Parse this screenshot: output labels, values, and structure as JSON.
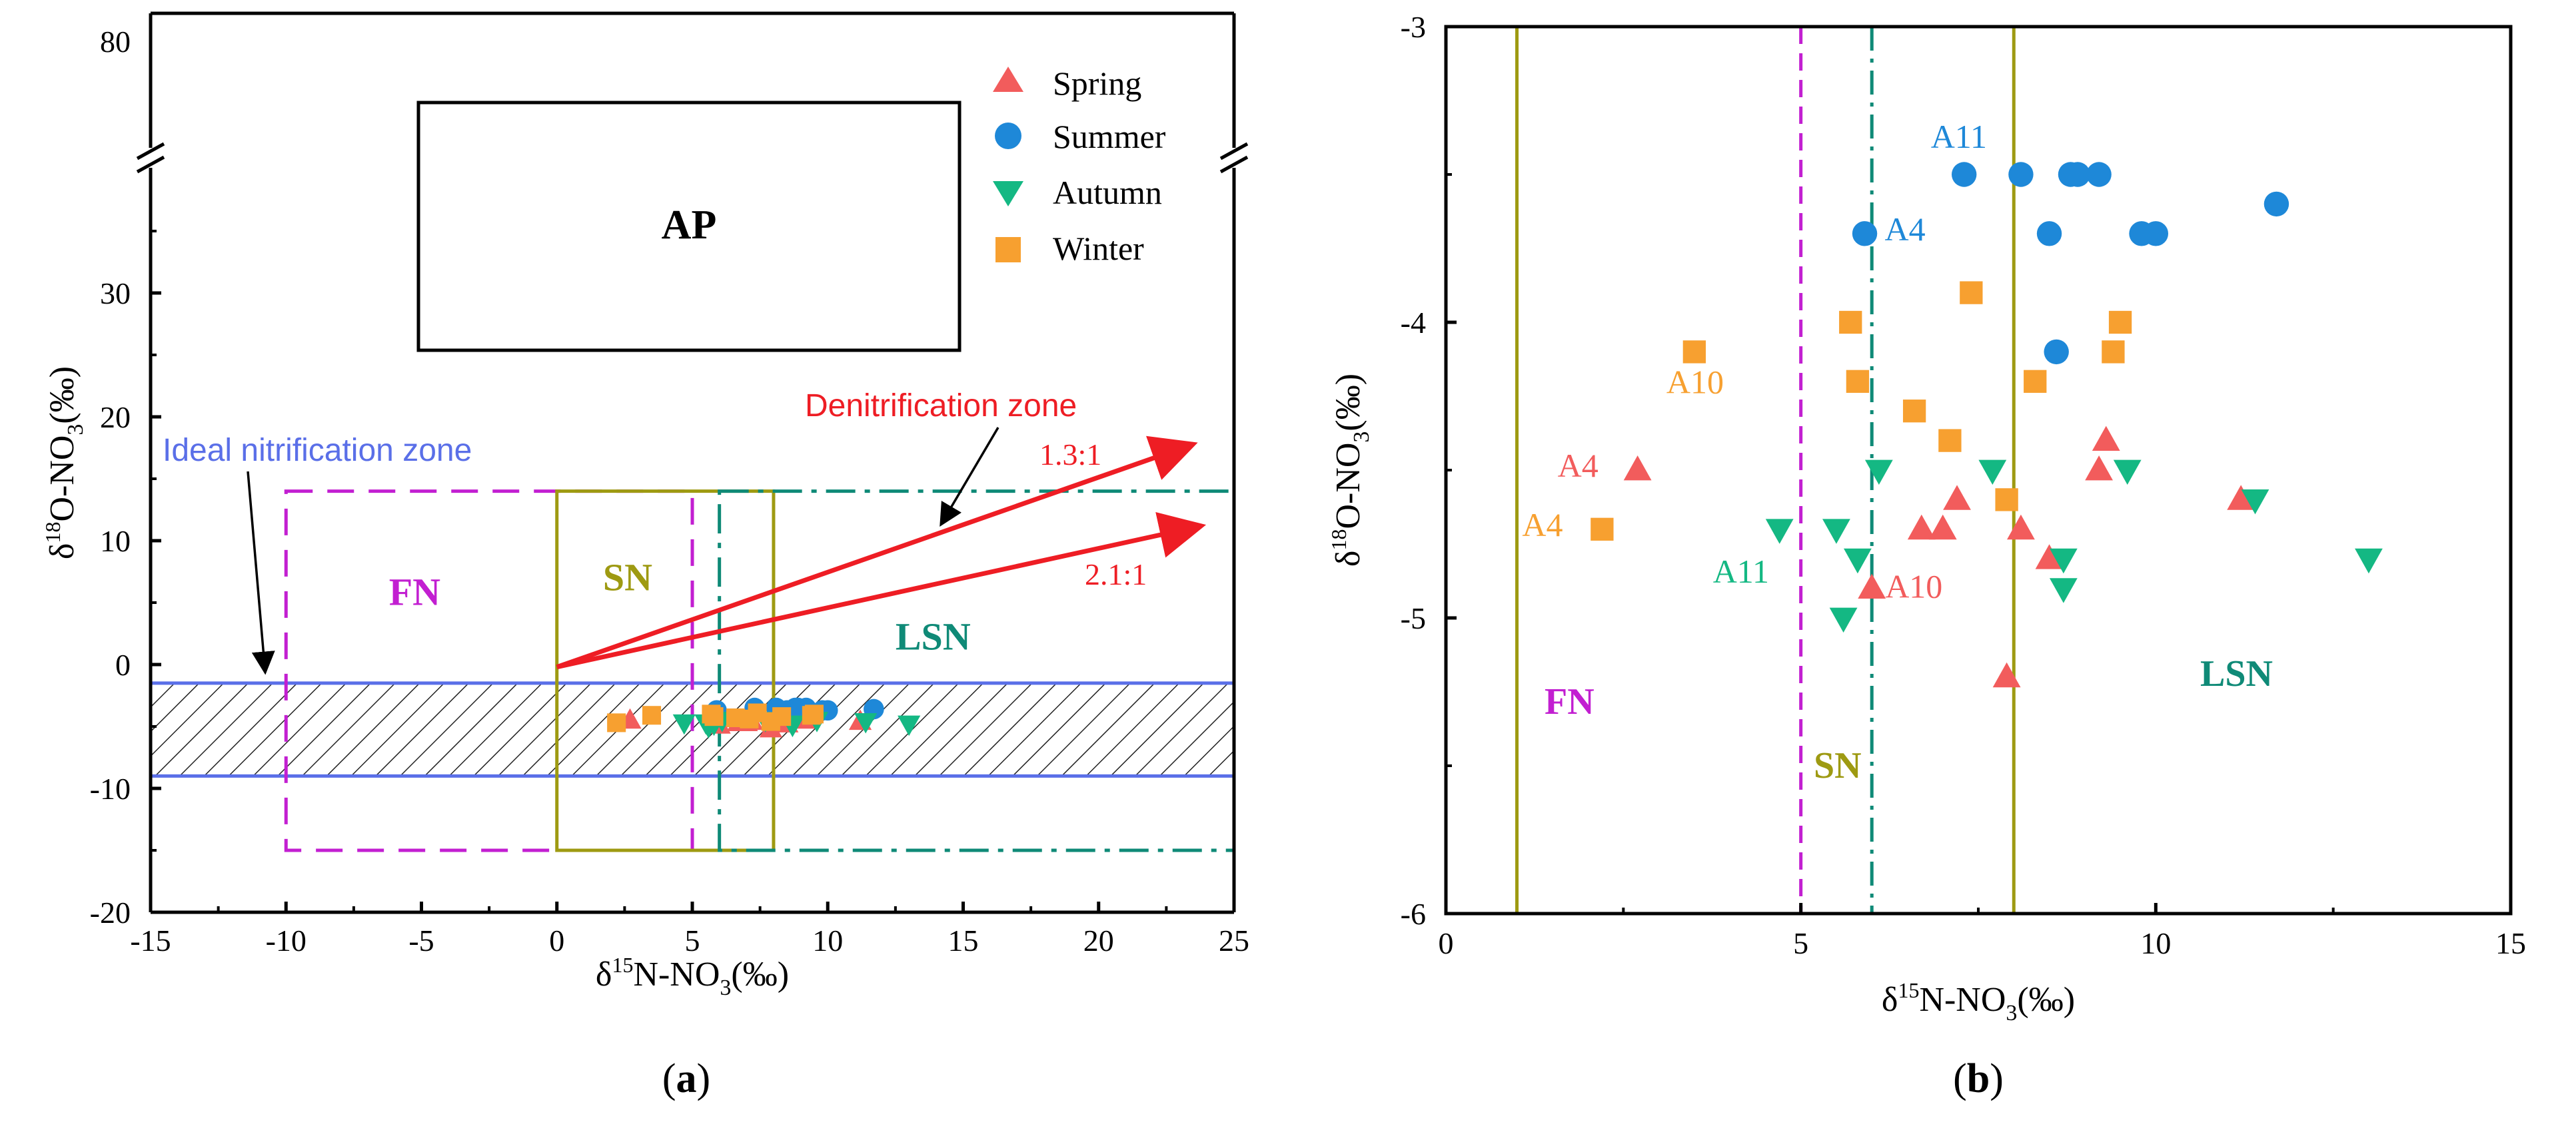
{
  "colors": {
    "spring": "#f25c5c",
    "summer": "#1e88d8",
    "autumn": "#14b883",
    "winter": "#f7a030",
    "fn": "#c21fd1",
    "sn": "#9e9a12",
    "lsn": "#0f8a77",
    "nitrification": "#5a6fe8",
    "denitrification": "#ee1d24"
  },
  "legend": {
    "spring": "Spring",
    "summer": "Summer",
    "autumn": "Autumn",
    "winter": "Winter"
  },
  "chart_data": [
    {
      "type": "scatter",
      "panel_label": "(a)",
      "xlabel": "δ15N-NO3(‰)",
      "ylabel": "δ18O-NO3(‰)",
      "xlim": [
        -15,
        25
      ],
      "ylim": [
        -20,
        37
      ],
      "ylim_break": {
        "below": 37,
        "above_label": 80
      },
      "xticks": [
        -15,
        -10,
        -5,
        0,
        5,
        10,
        15,
        20,
        25
      ],
      "yticks": [
        -20,
        -10,
        0,
        10,
        20,
        30
      ],
      "extra_tick_label": "80",
      "zones": {
        "ap_label": "AP",
        "fn_label": "FN",
        "sn_label": "SN",
        "lsn_label": "LSN",
        "fn_box": {
          "x": [
            -10,
            5
          ],
          "y": [
            -15,
            14
          ]
        },
        "sn_box": {
          "x": [
            0,
            8
          ],
          "y": [
            -15,
            14
          ]
        },
        "lsn_box": {
          "x": [
            6,
            25
          ],
          "y": [
            -15,
            14
          ]
        },
        "nitrification_band": {
          "x": [
            -15,
            25
          ],
          "y": [
            -9,
            -1.5
          ]
        },
        "nitrification_label": "Ideal nitrification zone",
        "denitrification_label": "Denitrification zone",
        "ratio_1": "1.3:1",
        "ratio_2": "2.1:1",
        "arrow_1": {
          "from": [
            0,
            -0.2
          ],
          "to": [
            23.5,
            17.8
          ]
        },
        "arrow_2": {
          "from": [
            0,
            -0.2
          ],
          "to": [
            23.8,
            11.2
          ]
        }
      },
      "series": [
        {
          "name": "Spring",
          "x": [
            2.7,
            6.7,
            7.0,
            7.2,
            7.9,
            8.1,
            8.5,
            9.2,
            9.3,
            11.2,
            6.0
          ],
          "y": [
            -4.5,
            -4.7,
            -4.7,
            -4.6,
            -5.2,
            -4.7,
            -4.8,
            -4.5,
            -4.4,
            -4.6,
            -4.9
          ]
        },
        {
          "name": "Summer",
          "x": [
            5.9,
            7.3,
            8.1,
            8.8,
            8.9,
            9.2,
            8.5,
            9.8,
            10.0,
            11.7,
            8.6
          ],
          "y": [
            -3.7,
            -3.5,
            -3.5,
            -3.5,
            -3.5,
            -3.5,
            -3.7,
            -3.7,
            -3.7,
            -3.6,
            -4.1
          ]
        },
        {
          "name": "Autumn",
          "x": [
            4.7,
            5.5,
            5.8,
            5.6,
            6.1,
            7.7,
            8.7,
            8.7,
            9.6,
            11.4,
            13.0
          ],
          "y": [
            -4.7,
            -4.7,
            -4.8,
            -5.0,
            -4.5,
            -4.5,
            -4.8,
            -4.9,
            -4.5,
            -4.6,
            -4.8
          ]
        },
        {
          "name": "Winter",
          "x": [
            2.2,
            3.5,
            5.7,
            5.8,
            6.6,
            7.1,
            7.4,
            7.9,
            8.3,
            9.5,
            9.4
          ],
          "y": [
            -4.7,
            -4.1,
            -4.0,
            -4.2,
            -4.3,
            -4.4,
            -3.9,
            -4.6,
            -4.2,
            -4.0,
            -4.1
          ]
        }
      ]
    },
    {
      "type": "scatter",
      "panel_label": "(b)",
      "xlabel": "δ15N-NO3(‰)",
      "ylabel": "δ18O-NO3(‰)",
      "xlim": [
        0,
        15
      ],
      "ylim": [
        -6,
        -3
      ],
      "xticks": [
        0,
        5,
        10,
        15
      ],
      "yticks": [
        -6,
        -5,
        -4,
        -3
      ],
      "zones": {
        "fn_label": "FN",
        "sn_label": "SN",
        "lsn_label": "LSN",
        "sn_box": {
          "x": [
            1,
            8
          ],
          "y": [
            -6,
            -3
          ]
        },
        "fn_line_x": 5,
        "lsn_line_x": 6
      },
      "point_labels": [
        {
          "text": "A11",
          "series": "Summer",
          "x": 7.3,
          "y": -3.5
        },
        {
          "text": "A4",
          "series": "Summer",
          "x": 5.9,
          "y": -3.7
        },
        {
          "text": "A10",
          "series": "Winter",
          "x": 3.5,
          "y": -4.1
        },
        {
          "text": "A4",
          "series": "Spring",
          "x": 2.7,
          "y": -4.5
        },
        {
          "text": "A4",
          "series": "Winter",
          "x": 2.2,
          "y": -4.7
        },
        {
          "text": "A11",
          "series": "Autumn",
          "x": 4.7,
          "y": -4.7
        },
        {
          "text": "A10",
          "series": "Spring",
          "x": 6.0,
          "y": -4.9
        }
      ]
    }
  ]
}
